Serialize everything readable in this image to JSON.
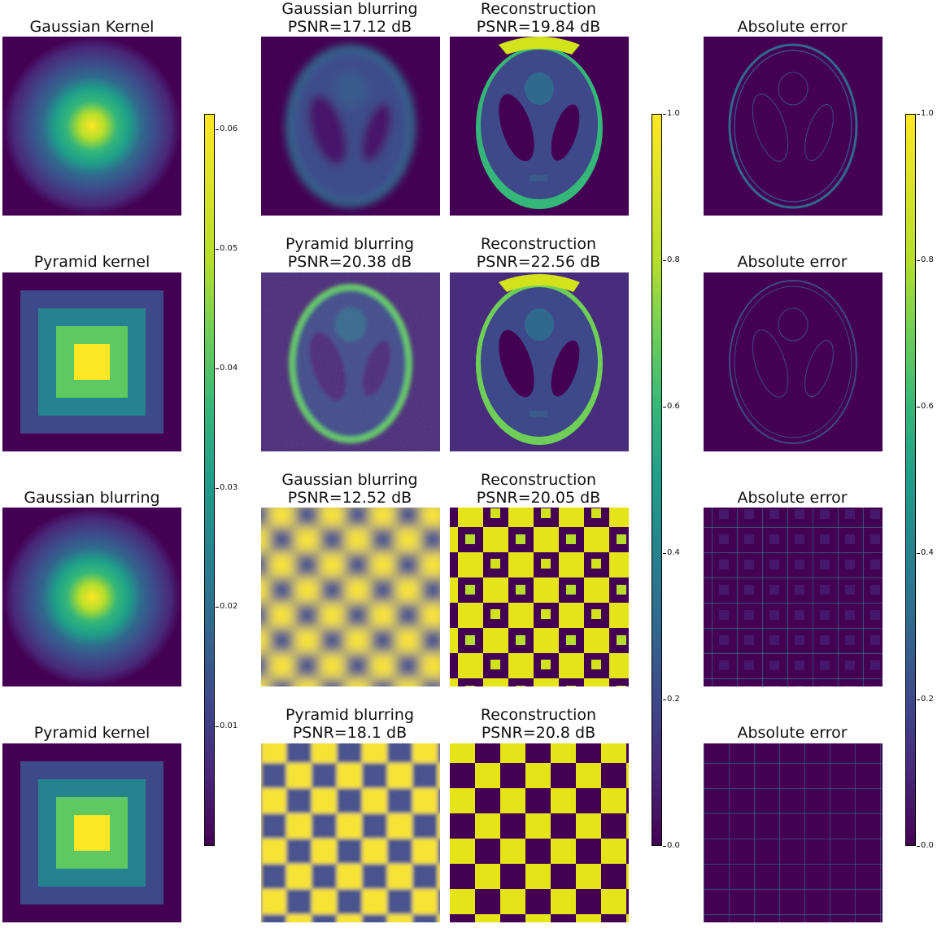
{
  "colormap": "viridis",
  "colors": {
    "low": "#440154",
    "dark_purple": "#482878",
    "blue": "#3e4989",
    "slate": "#31688e",
    "teal": "#26828e",
    "green_teal": "#1f9e89",
    "green": "#35b779",
    "light_green": "#6ece58",
    "lime": "#b5de2b",
    "high": "#fde725"
  },
  "rows": [
    {
      "kernel_title": "Gaussian Kernel",
      "blur_title": "Gaussian blurring\n PSNR=17.12 dB",
      "recon_title": "Reconstruction\n PSNR=19.84 dB",
      "error_title": "Absolute error",
      "kernel_icon": "gaussian-kernel-image",
      "image_icon": "shepp-logan-phantom"
    },
    {
      "kernel_title": "Pyramid kernel",
      "blur_title": "Pyramid blurring\n PSNR=20.38 dB",
      "recon_title": "Reconstruction\n PSNR=22.56 dB",
      "error_title": "Absolute error",
      "kernel_icon": "pyramid-kernel-image",
      "image_icon": "shepp-logan-phantom"
    },
    {
      "kernel_title": "Gaussian blurring",
      "blur_title": "Gaussian blurring\n PSNR=12.52 dB",
      "recon_title": "Reconstruction\n PSNR=20.05 dB",
      "error_title": "Absolute error",
      "kernel_icon": "gaussian-kernel-image",
      "image_icon": "checkerboard"
    },
    {
      "kernel_title": "Pyramid kernel",
      "blur_title": "Pyramid blurring\n PSNR=18.1 dB",
      "recon_title": "Reconstruction\n PSNR=20.8 dB",
      "error_title": "Absolute error",
      "kernel_icon": "pyramid-kernel-image",
      "image_icon": "checkerboard"
    }
  ],
  "colorbars": {
    "kernel": {
      "range": [
        0,
        0.0615
      ],
      "ticks": [
        "0.06",
        "0.05",
        "0.04",
        "0.03",
        "0.02",
        "0.01"
      ],
      "tick_values": [
        0.06,
        0.05,
        0.04,
        0.03,
        0.02,
        0.01
      ]
    },
    "image": {
      "range": [
        0,
        1
      ],
      "ticks": [
        "1.0",
        "0.8",
        "0.6",
        "0.4",
        "0.2",
        "0.0"
      ],
      "tick_values": [
        1.0,
        0.8,
        0.6,
        0.4,
        0.2,
        0.0
      ]
    },
    "error": {
      "range": [
        0,
        1
      ],
      "ticks": [
        "1.0",
        "0.8",
        "0.6",
        "0.4",
        "0.2",
        "0.0"
      ],
      "tick_values": [
        1.0,
        0.8,
        0.6,
        0.4,
        0.2,
        0.0
      ]
    }
  }
}
